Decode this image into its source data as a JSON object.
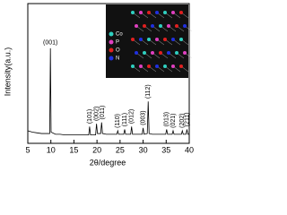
{
  "chart_data": {
    "type": "line",
    "x_label": "2θ/degree",
    "y_label": "Intensity(a.u.)",
    "x": [
      5,
      6,
      7,
      8,
      9,
      9.75,
      9.9,
      10.05,
      11,
      12,
      13,
      14,
      15,
      16,
      17,
      18.2,
      18.4,
      18.6,
      19.7,
      19.9,
      20.1,
      20.8,
      21.0,
      21.2,
      22,
      23,
      24.3,
      24.5,
      24.7,
      25.8,
      26.0,
      26.2,
      27.3,
      27.5,
      27.7,
      28.5,
      29.8,
      30.0,
      30.2,
      30.9,
      31.1,
      31.3,
      32,
      33,
      34,
      34.9,
      35.1,
      35.3,
      36.3,
      36.5,
      36.7,
      37.5,
      38.3,
      38.5,
      38.7,
      39.3,
      39.5,
      39.7,
      40
    ],
    "series": [
      {
        "color": "#000000",
        "values": [
          9,
          8,
          7.5,
          7,
          7,
          7,
          68,
          8,
          6.5,
          6.5,
          6,
          6,
          6,
          6,
          6,
          6,
          12,
          6,
          6,
          14,
          7,
          7,
          15,
          7,
          6.5,
          6.5,
          6.5,
          9,
          6.5,
          6.5,
          10,
          6.5,
          6.5,
          12,
          6.5,
          6.5,
          6.5,
          11,
          6.5,
          7,
          30,
          7,
          6.5,
          6.5,
          6.5,
          6.5,
          10,
          6.5,
          6.5,
          9,
          6.5,
          6.5,
          6.5,
          9,
          6.5,
          6.5,
          10,
          6.5,
          6.5
        ]
      }
    ],
    "xlim": [
      5,
      40
    ],
    "xticks": [
      5,
      10,
      15,
      20,
      25,
      30,
      35,
      40
    ],
    "ylim": [
      0,
      100
    ],
    "annotations": [
      {
        "text": "(001)",
        "x": 9.9,
        "y": 72,
        "rotation": 0
      },
      {
        "text": "(101)",
        "x": 18.4,
        "y": 14,
        "rotation": 90
      },
      {
        "text": "(002)",
        "x": 19.9,
        "y": 16,
        "rotation": 90
      },
      {
        "text": "(011)",
        "x": 21.2,
        "y": 17,
        "rotation": 90
      },
      {
        "text": "(110)",
        "x": 24.5,
        "y": 11,
        "rotation": 90
      },
      {
        "text": "(111)",
        "x": 26.0,
        "y": 12,
        "rotation": 90
      },
      {
        "text": "(012)",
        "x": 27.5,
        "y": 14,
        "rotation": 90
      },
      {
        "text": "(003)",
        "x": 30.0,
        "y": 13,
        "rotation": 90
      },
      {
        "text": "(112)",
        "x": 31.1,
        "y": 32,
        "rotation": 90
      },
      {
        "text": "(013)",
        "x": 35.1,
        "y": 12,
        "rotation": 90
      },
      {
        "text": "(021)",
        "x": 36.5,
        "y": 11,
        "rotation": 90
      },
      {
        "text": "(202)",
        "x": 38.5,
        "y": 11,
        "rotation": 90
      },
      {
        "text": "(211)",
        "x": 39.5,
        "y": 12,
        "rotation": 90
      }
    ],
    "inset_legend": [
      {
        "name": "Co",
        "color": "#2fd0c0"
      },
      {
        "name": "P",
        "color": "#e040c0"
      },
      {
        "name": "O",
        "color": "#e02020"
      },
      {
        "name": "N",
        "color": "#2030e0"
      }
    ]
  }
}
